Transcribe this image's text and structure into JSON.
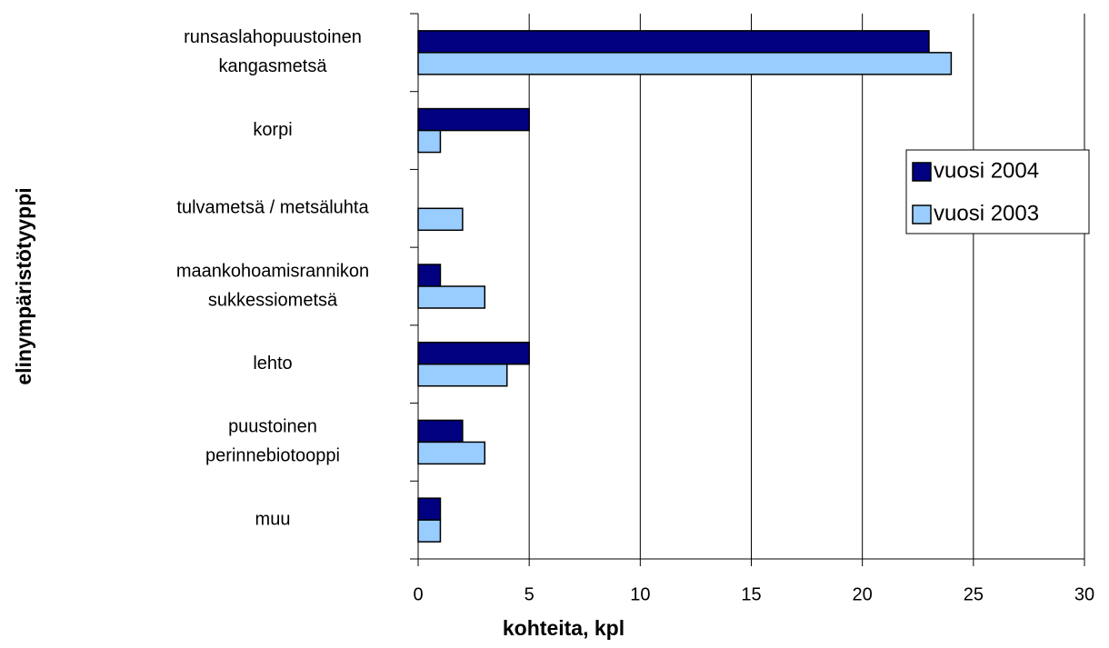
{
  "chart_data": {
    "type": "barh",
    "categories": [
      [
        "runsaslahopuustoinen",
        "kangasmetsä"
      ],
      [
        "korpi"
      ],
      [
        "tulvametsä / metsäluhta"
      ],
      [
        "maankohoamisrannikon",
        "sukkessiometsä"
      ],
      [
        "lehto"
      ],
      [
        "puustoinen",
        "perinnebiotooppi"
      ],
      [
        "muu"
      ]
    ],
    "series": [
      {
        "name": "vuosi 2004",
        "color": "#000080",
        "values": [
          23,
          5,
          0,
          1,
          5,
          2,
          1
        ]
      },
      {
        "name": "vuosi 2003",
        "color": "#99ccff",
        "values": [
          24,
          1,
          2,
          3,
          4,
          3,
          1
        ]
      }
    ],
    "xlim": [
      0,
      30
    ],
    "xticks": [
      0,
      5,
      10,
      15,
      20,
      25,
      30
    ],
    "xlabel": "kohteita, kpl",
    "ylabel": "elinympäristötyyppi",
    "grid": true,
    "legend": "right"
  }
}
